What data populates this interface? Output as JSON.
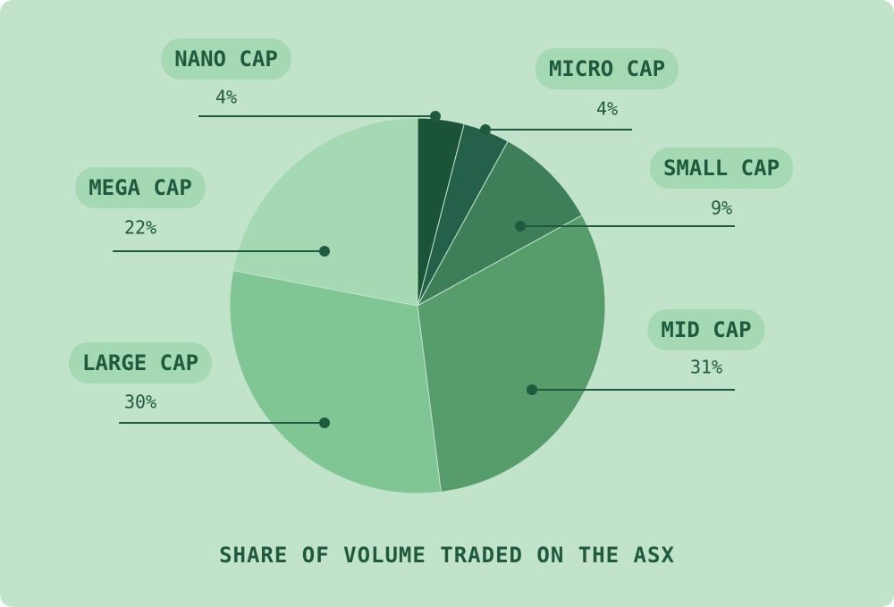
{
  "chart_data": {
    "type": "pie",
    "title": "SHARE OF VOLUME TRADED ON THE ASX",
    "categories": [
      "NANO CAP",
      "MICRO CAP",
      "SMALL CAP",
      "MID CAP",
      "LARGE CAP",
      "MEGA CAP"
    ],
    "values": [
      4,
      4,
      9,
      31,
      30,
      22
    ],
    "value_labels": [
      "4%",
      "4%",
      "9%",
      "31%",
      "30%",
      "22%"
    ],
    "colors": [
      "#1a5338",
      "#25604a",
      "#3e7f59",
      "#569d6b",
      "#80c694",
      "#a5d9b3"
    ]
  }
}
